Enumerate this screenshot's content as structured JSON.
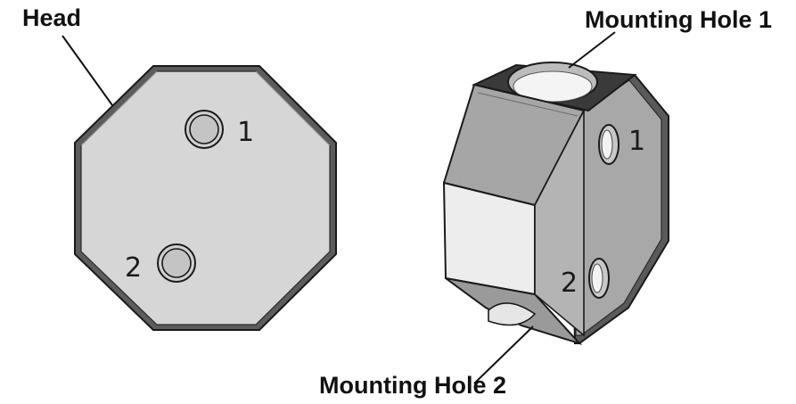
{
  "labels": {
    "head": "Head",
    "mounting_hole_1": "Mounting Hole 1",
    "mounting_hole_2": "Mounting Hole 2"
  },
  "hole_numbers": {
    "one": "1",
    "two": "2"
  },
  "colors": {
    "face_light": "#d6d6d6",
    "face_mid": "#a4a4a4",
    "face_dark": "#5a5a5a",
    "face_white": "#ededed",
    "outline": "#1a1a1a"
  }
}
